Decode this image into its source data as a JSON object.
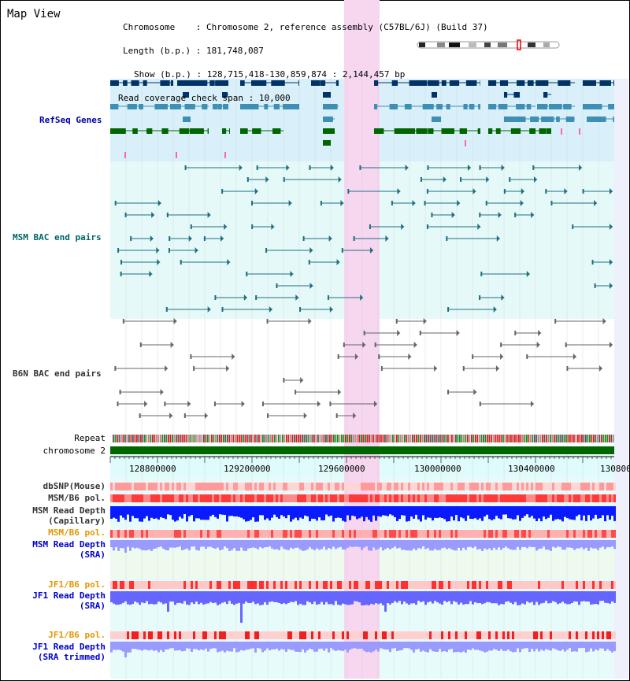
{
  "title": "Map View",
  "info": {
    "chromosome_key": "Chromosome",
    "chromosome_val": "Chromosome 2, reference assembly (C57BL/6J) (Build 37)",
    "length_key": "Length (b.p.)",
    "length_val": "181,748,087",
    "show_key": "Show (b.p.)",
    "show_val": "128,715,418-130,859,874 : 2,144,457 bp",
    "coverage_key": "Read coverage check span",
    "coverage_val": "10,000"
  },
  "tracks": {
    "refseq": "RefSeq Genes",
    "msm_bac": "MSM BAC end pairs",
    "b6n_bac": "B6N BAC end pairs",
    "repeat": "Repeat",
    "chromosome": "chromosome 2",
    "dbsnp": "dbSNP(Mouse)",
    "msm_b6_pol": "MSM/B6 pol.",
    "msm_read_depth_cap": "MSM Read Depth",
    "msm_read_depth_cap_sub": "(Capillary)",
    "msm_b6_pol2": "MSM/B6 pol.",
    "msm_read_depth_sra": "MSM Read Depth",
    "msm_read_depth_sra_sub": "(SRA)",
    "jf1_b6_pol": "JF1/B6 pol.",
    "jf1_read_depth_sra": "JF1 Read Depth",
    "jf1_read_depth_sra_sub": "(SRA)",
    "jf1_b6_pol2": "JF1/B6 pol.",
    "jf1_read_depth_trim": "JF1 Read Depth",
    "jf1_read_depth_trim_sub": "(SRA trimmed)"
  },
  "axis_ticks": [
    "128800000",
    "129200000",
    "129600000",
    "130000000",
    "130400000",
    "130800"
  ],
  "colors": {
    "refseq_label": "#0000aa",
    "msm_label": "#006666",
    "orange_label": "#e69500",
    "blue_label": "#0000cc",
    "gray_label": "#333333",
    "highlight": "#f7d6f0",
    "chromosome_bar": "#006600"
  }
}
